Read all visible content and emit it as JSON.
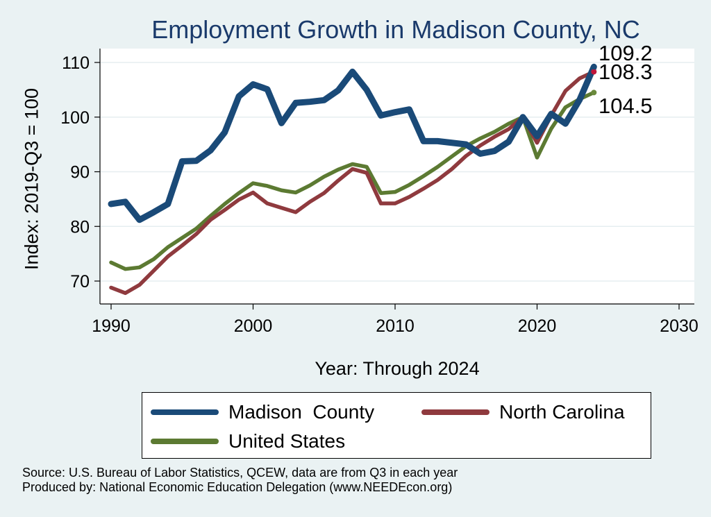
{
  "chart_data": {
    "type": "line",
    "title": "Employment Growth in Madison County, NC",
    "xlabel": "Year: Through 2024",
    "ylabel": "Index: 2019-Q3 = 100",
    "xlim": [
      1990,
      2030
    ],
    "ylim": [
      65,
      112
    ],
    "xticks": [
      1990,
      2000,
      2010,
      2020,
      2030
    ],
    "yticks": [
      70,
      80,
      90,
      100,
      110
    ],
    "grid": true,
    "legend_placement": "bottom",
    "x": [
      1990,
      1991,
      1992,
      1993,
      1994,
      1995,
      1996,
      1997,
      1998,
      1999,
      2000,
      2001,
      2002,
      2003,
      2004,
      2005,
      2006,
      2007,
      2008,
      2009,
      2010,
      2011,
      2012,
      2013,
      2014,
      2015,
      2016,
      2017,
      2018,
      2019,
      2020,
      2021,
      2022,
      2023,
      2024
    ],
    "series": [
      {
        "name": "Madison  County",
        "color": "#1a4a78",
        "end_label": "109.2",
        "values": [
          84.1,
          84.5,
          81.2,
          82.6,
          84.1,
          91.9,
          92.0,
          93.9,
          97.2,
          103.8,
          106.0,
          105.1,
          98.9,
          102.6,
          102.8,
          103.1,
          104.9,
          108.3,
          105.0,
          100.3,
          100.9,
          101.4,
          95.6,
          95.6,
          95.3,
          95.0,
          93.3,
          93.8,
          95.5,
          100.0,
          96.5,
          100.6,
          98.8,
          103.2,
          109.2
        ]
      },
      {
        "name": "North Carolina",
        "color": "#8f3a3e",
        "end_label": "108.3",
        "values": [
          68.8,
          67.8,
          69.3,
          71.9,
          74.5,
          76.5,
          78.6,
          81.2,
          83.0,
          84.9,
          86.2,
          84.2,
          83.4,
          82.6,
          84.5,
          86.1,
          88.4,
          90.5,
          89.8,
          84.2,
          84.2,
          85.4,
          86.9,
          88.5,
          90.5,
          92.9,
          94.8,
          96.4,
          97.8,
          100.0,
          95.3,
          100.3,
          104.8,
          107.1,
          108.3
        ]
      },
      {
        "name": "United States",
        "color": "#5c7a32",
        "end_label": "104.5",
        "values": [
          73.4,
          72.2,
          72.5,
          74.0,
          76.2,
          77.9,
          79.6,
          81.9,
          84.1,
          86.1,
          87.9,
          87.4,
          86.6,
          86.2,
          87.5,
          89.1,
          90.4,
          91.4,
          90.9,
          86.1,
          86.3,
          87.6,
          89.2,
          90.9,
          92.8,
          94.7,
          96.1,
          97.3,
          98.8,
          100.0,
          92.6,
          97.9,
          101.8,
          103.3,
          104.5
        ]
      }
    ]
  },
  "legend": {
    "madison_label": "Madison  County",
    "nc_label": "North Carolina",
    "us_label": "United States"
  },
  "source": {
    "line1": "Source: U.S. Bureau of Labor Statistics, QCEW, data are from Q3 in each year",
    "line2": "Produced by: National Economic Education Delegation (www.NEEDEcon.org)"
  }
}
